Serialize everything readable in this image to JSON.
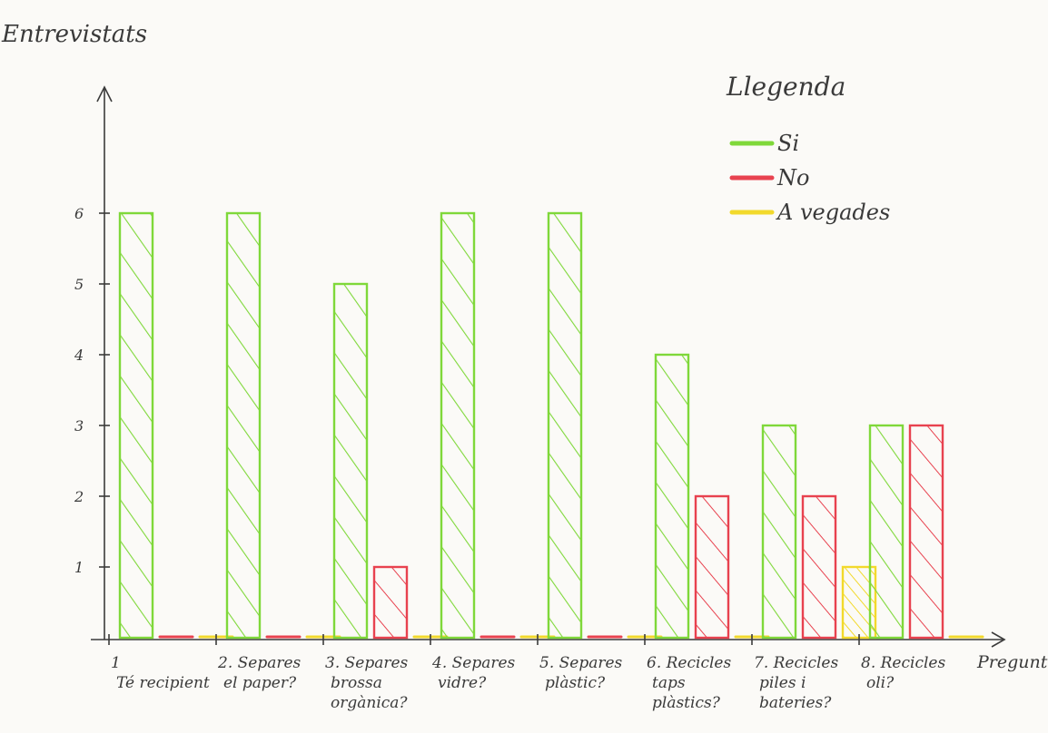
{
  "chart_data": {
    "type": "bar",
    "ylabel": "Entrevistats",
    "xlabel": "Preguntes",
    "ylim": [
      0,
      6.5
    ],
    "yticks": [
      "1",
      "2",
      "3",
      "4",
      "5",
      "6"
    ],
    "categories": [
      [
        "1",
        "Té recipient"
      ],
      [
        "2. Separes",
        "el paper?"
      ],
      [
        "3. Separes",
        "brossa",
        "orgànica?"
      ],
      [
        "4. Separes",
        "vidre?"
      ],
      [
        "5. Separes",
        "plàstic?"
      ],
      [
        "6. Recicles",
        "taps",
        "plàstics?"
      ],
      [
        "7. Recicles",
        "piles i",
        "bateries?"
      ],
      [
        "8. Recicles",
        "oli?"
      ]
    ],
    "series": [
      {
        "name": "Si",
        "color": "#7fd83a",
        "values": [
          6,
          6,
          5,
          6,
          6,
          4,
          3,
          3
        ]
      },
      {
        "name": "No",
        "color": "#e8424f",
        "values": [
          0,
          0,
          1,
          0,
          0,
          2,
          2,
          3
        ]
      },
      {
        "name": "A vegades",
        "color": "#f2d92c",
        "values": [
          0,
          0,
          0,
          0,
          0,
          0,
          1,
          0
        ]
      }
    ],
    "legend": {
      "title": "Llegenda",
      "position": "top-right"
    },
    "grid": false
  }
}
